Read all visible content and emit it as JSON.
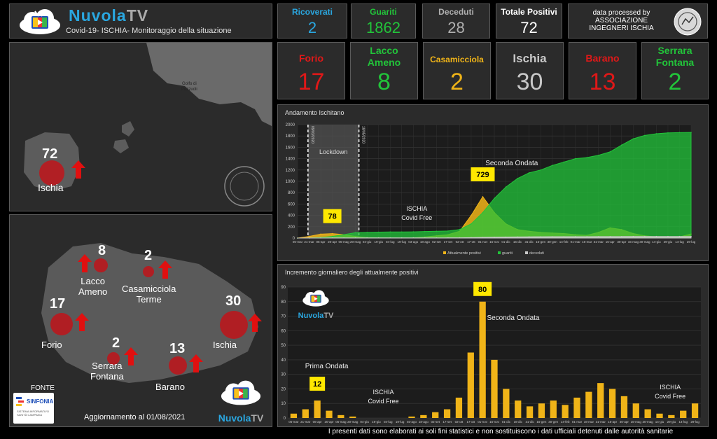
{
  "header": {
    "brand_a": "Nuvola",
    "brand_b": "TV",
    "subtitle": "Covid-19- ISCHIA- Monitoraggio della situazione",
    "credit_line1": "data processed by",
    "credit_line2": "ASSOCIAZIONE",
    "credit_line3": "INGEGNERI ISCHIA"
  },
  "kpis": [
    {
      "label": "Ricoverati",
      "value": "2",
      "color": "#2aa7e0"
    },
    {
      "label": "Guariti",
      "value": "1862",
      "color": "#22c43a"
    },
    {
      "label": "Deceduti",
      "value": "28",
      "color": "#b0b0b0"
    },
    {
      "label": "Totale Positivi",
      "value": "72",
      "color": "#ffffff"
    }
  ],
  "towns": [
    {
      "label1": "Forio",
      "label2": "",
      "value": "17",
      "color": "#e01818"
    },
    {
      "label1": "Lacco",
      "label2": "Ameno",
      "value": "8",
      "color": "#22c43a"
    },
    {
      "label1": "Casamicciola",
      "label2": "",
      "value": "2",
      "color": "#f0b418"
    },
    {
      "label1": "Ischia",
      "label2": "",
      "value": "30",
      "color": "#c8c8c8"
    },
    {
      "label1": "Barano",
      "label2": "",
      "value": "13",
      "color": "#e01818"
    },
    {
      "label1": "Serrara",
      "label2": "Fontana",
      "value": "2",
      "color": "#22c43a"
    }
  ],
  "top_map": {
    "total": "72",
    "label": "Ischia",
    "sea1": "Golfo di",
    "sea2": "Pozzuoli"
  },
  "island_map": {
    "markers": [
      {
        "name": "Lacco",
        "name2": "Ameno",
        "value": "8"
      },
      {
        "name": "Casamicciola",
        "name2": "Terme",
        "value": "2"
      },
      {
        "name": "Forio",
        "name2": "",
        "value": "17"
      },
      {
        "name": "Ischia",
        "name2": "",
        "value": "30"
      },
      {
        "name": "Serrara",
        "name2": "Fontana",
        "value": "2"
      },
      {
        "name": "Barano",
        "name2": "",
        "value": "13"
      }
    ],
    "source_label": "FONTE",
    "source_name": "SINFONIA",
    "source_desc": "SISTEMA INFORMATIVO SANITÀ CAMPANIA",
    "updated": "Aggiornamento al 01/08/2021"
  },
  "chart1": {
    "title": "Andamento Ischitano",
    "lockdown": "Lockdown",
    "lockdown_start": "09/03/2020",
    "lockdown_end": "18/05/2020",
    "annot_second": "Seconda Ondata",
    "annot_free": "ISCHIA\nCovid Free",
    "peak1": "78",
    "peak2": "729"
  },
  "chart2": {
    "title": "Incremento giornaliero degli attualmente positivi",
    "annot_first": "Prima Ondata",
    "annot_second": "Seconda Ondata",
    "annot_free1": "ISCHIA\nCovid Free",
    "annot_free2": "ISCHIA\nCovid Free",
    "peak1": "12",
    "peak2": "80"
  },
  "footer": {
    "disclaimer": "I presenti dati sono elaborati ai soli fini statistici e non sostituiscono i dati ufficiali detenuti dalle autorità sanitarie"
  },
  "chart_data": [
    {
      "type": "area",
      "title": "Andamento Ischitano",
      "ylim": [
        0,
        2000
      ],
      "yticks": [
        0,
        200,
        400,
        600,
        800,
        1000,
        1200,
        1400,
        1600,
        1800,
        2000
      ],
      "x": [
        "06-mar",
        "21-mar",
        "05-apr",
        "20-apr",
        "05-mag",
        "20-mag",
        "04-giu",
        "19-giu",
        "04-lug",
        "19-lug",
        "03-ago",
        "18-ago",
        "02-set",
        "17-set",
        "02-ott",
        "17-ott",
        "01-nov",
        "16-nov",
        "01-dic",
        "16-dic",
        "31-dic",
        "15-gen",
        "30-gen",
        "14-feb",
        "01-mar",
        "16-mar",
        "31-mar",
        "15-apr",
        "30-apr",
        "15-mag",
        "30-mag",
        "14-giu",
        "29-giu",
        "14-lug",
        "29-lug"
      ],
      "legend": [
        "Attualmente positivi",
        "guariti",
        "deceduti"
      ],
      "series": [
        {
          "name": "Attualmente positivi",
          "color": "#f0b418",
          "values": [
            0,
            30,
            70,
            78,
            60,
            30,
            10,
            5,
            3,
            2,
            5,
            20,
            40,
            60,
            120,
            400,
            729,
            450,
            250,
            150,
            120,
            100,
            90,
            80,
            60,
            50,
            100,
            180,
            150,
            80,
            40,
            20,
            10,
            20,
            72
          ]
        },
        {
          "name": "guariti",
          "color": "#22c43a",
          "values": [
            0,
            0,
            10,
            30,
            60,
            95,
            100,
            105,
            108,
            108,
            110,
            115,
            120,
            125,
            150,
            250,
            450,
            700,
            900,
            1050,
            1150,
            1200,
            1280,
            1340,
            1400,
            1420,
            1460,
            1520,
            1640,
            1750,
            1810,
            1840,
            1855,
            1860,
            1862
          ]
        },
        {
          "name": "deceduti",
          "color": "#c8c8c8",
          "values": [
            0,
            1,
            2,
            3,
            3,
            3,
            3,
            3,
            3,
            3,
            3,
            3,
            3,
            4,
            5,
            8,
            12,
            15,
            18,
            20,
            22,
            23,
            24,
            24,
            25,
            25,
            26,
            27,
            27,
            28,
            28,
            28,
            28,
            28,
            28
          ]
        }
      ]
    },
    {
      "type": "bar",
      "title": "Incremento giornaliero degli attualmente positivi",
      "ylim": [
        0,
        90
      ],
      "yticks": [
        0,
        10,
        20,
        30,
        40,
        50,
        60,
        70,
        80,
        90
      ],
      "x": [
        "06-mar",
        "21-mar",
        "05-apr",
        "20-apr",
        "05-mag",
        "20-mag",
        "04-giu",
        "19-giu",
        "04-lug",
        "19-lug",
        "03-ago",
        "18-ago",
        "02-set",
        "17-set",
        "02-ott",
        "17-ott",
        "01-nov",
        "16-nov",
        "01-dic",
        "16-dic",
        "31-dic",
        "15-gen",
        "30-gen",
        "14-feb",
        "01-mar",
        "16-mar",
        "31-mar",
        "15-apr",
        "30-apr",
        "15-mag",
        "30-mag",
        "14-giu",
        "29-giu",
        "14-lug",
        "29-lug"
      ],
      "series": [
        {
          "name": "Incremento giornaliero",
          "color": "#f0b418",
          "values": [
            3,
            6,
            12,
            5,
            2,
            1,
            0,
            0,
            0,
            0,
            1,
            2,
            4,
            6,
            14,
            45,
            80,
            40,
            20,
            12,
            8,
            10,
            12,
            9,
            14,
            18,
            24,
            20,
            15,
            10,
            6,
            3,
            2,
            5,
            10
          ]
        }
      ]
    }
  ]
}
